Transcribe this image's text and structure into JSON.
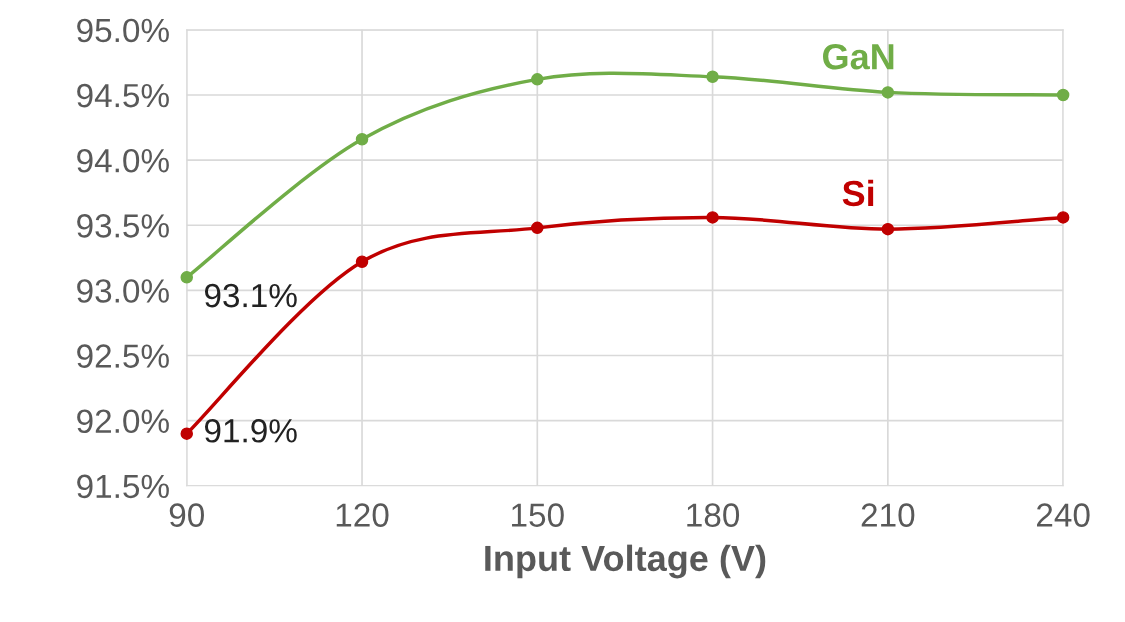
{
  "chart_data": {
    "type": "line",
    "xlabel": "Input Voltage (V)",
    "x": [
      90,
      120,
      150,
      180,
      210,
      240
    ],
    "series": [
      {
        "name": "GaN",
        "color": "#70ad47",
        "values": [
          93.1,
          94.16,
          94.62,
          94.64,
          94.52,
          94.5
        ],
        "value_labels": [
          "93.1%",
          null,
          null,
          null,
          null,
          null
        ]
      },
      {
        "name": "Si",
        "color": "#c00000",
        "values": [
          91.9,
          93.22,
          93.48,
          93.56,
          93.47,
          93.56
        ],
        "value_labels": [
          "91.9%",
          null,
          null,
          null,
          null,
          null
        ]
      }
    ],
    "xlim": [
      90,
      240
    ],
    "xticks": [
      90,
      120,
      150,
      180,
      210,
      240
    ],
    "ylim": [
      91.5,
      95.0
    ],
    "yticks": [
      {
        "value": 91.5,
        "label": "91.5%"
      },
      {
        "value": 92.0,
        "label": "92.0%"
      },
      {
        "value": 92.5,
        "label": "92.5%"
      },
      {
        "value": 93.0,
        "label": "93.0%"
      },
      {
        "value": 93.5,
        "label": "93.5%"
      },
      {
        "value": 94.0,
        "label": "94.0%"
      },
      {
        "value": 94.5,
        "label": "94.5%"
      },
      {
        "value": 95.0,
        "label": "95.0%"
      }
    ],
    "grid": true,
    "marker": "circle",
    "line_style": "solid",
    "legend": false
  }
}
